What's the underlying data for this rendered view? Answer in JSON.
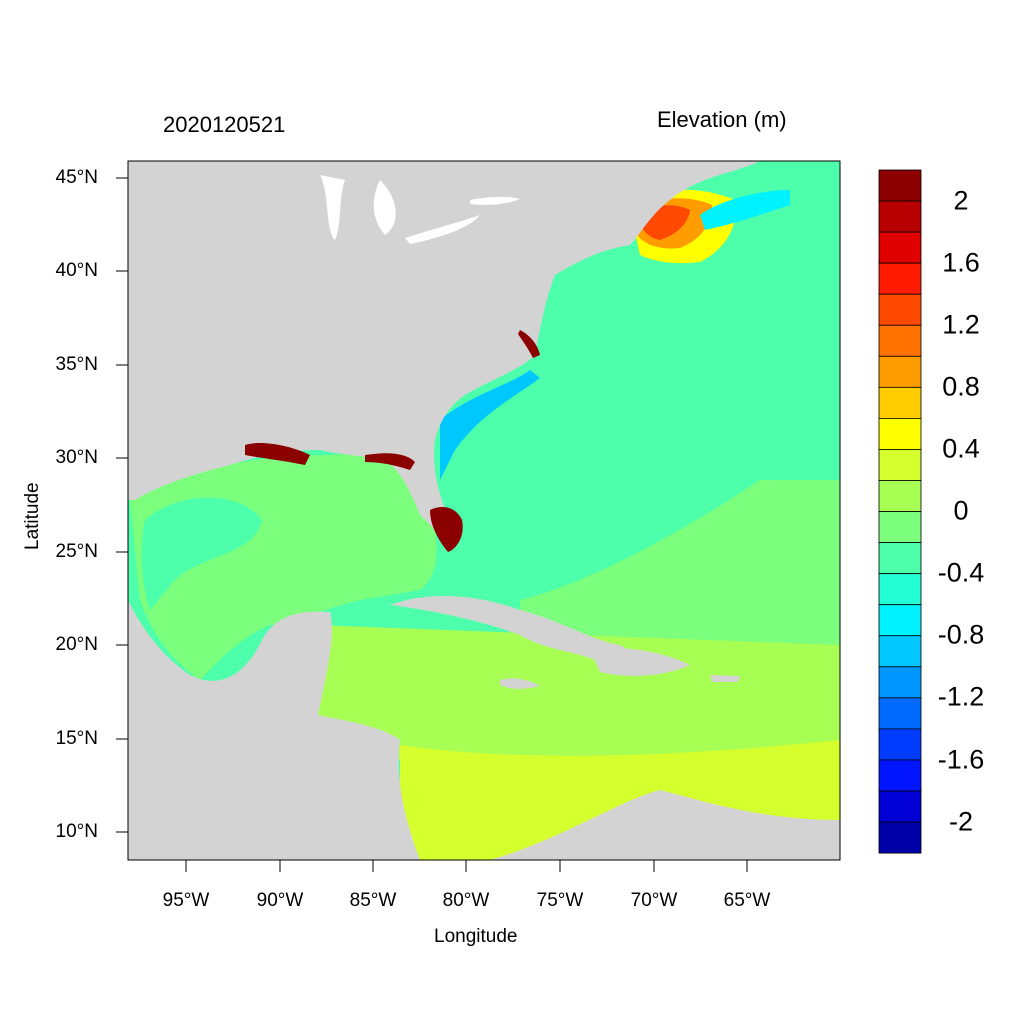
{
  "map": {
    "time_label": "2020120521",
    "field_label": "Elevation (m)",
    "x_axis_title": "Longitude",
    "y_axis_title": "Latitude",
    "lon_ticks": [
      "95°W",
      "90°W",
      "85°W",
      "80°W",
      "75°W",
      "70°W",
      "65°W"
    ],
    "lat_ticks": [
      "45°N",
      "40°N",
      "35°N",
      "30°N",
      "25°N",
      "20°N",
      "15°N",
      "10°N"
    ],
    "extent": {
      "lon_min": -98,
      "lon_max": -60,
      "lat_min": 8.5,
      "lat_max": 46
    }
  },
  "colorbar": {
    "tick_labels": [
      "2",
      "1.6",
      "1.2",
      "0.8",
      "0.4",
      "0",
      "-0.4",
      "-0.8",
      "-1.2",
      "-1.6",
      "-2"
    ],
    "colors_top_to_bottom": [
      "#8b0000",
      "#b80000",
      "#e00000",
      "#ff1a00",
      "#ff4800",
      "#ff7200",
      "#ff9c00",
      "#ffcc00",
      "#ffff00",
      "#d6ff2e",
      "#a8ff54",
      "#7cff7c",
      "#4dffaa",
      "#24ffd6",
      "#00f2ff",
      "#00c8ff",
      "#0096ff",
      "#006aff",
      "#003cff",
      "#0014ff",
      "#0000d6",
      "#0000a8"
    ]
  },
  "colors": {
    "land": "#d3d3d3",
    "lakes": "#ffffff",
    "atlantic_open": "#4dffaa",
    "gulf": "#7cff7c",
    "caribbean_north": "#a8ff54",
    "caribbean_south": "#d6ff2e",
    "inundation": "#8b0000"
  }
}
